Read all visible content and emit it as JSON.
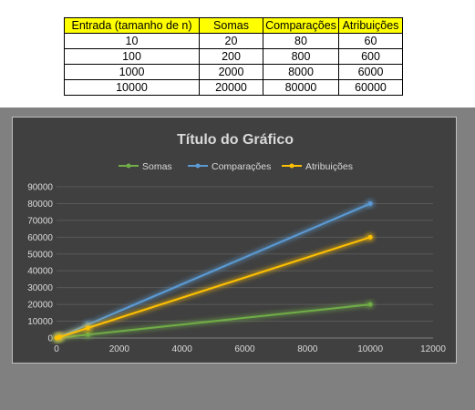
{
  "table": {
    "headers": [
      "Entrada (tamanho de n)",
      "Somas",
      "Comparações",
      "Atribuições"
    ],
    "rows": [
      [
        "10",
        "20",
        "80",
        "60"
      ],
      [
        "100",
        "200",
        "800",
        "600"
      ],
      [
        "1000",
        "2000",
        "8000",
        "6000"
      ],
      [
        "10000",
        "20000",
        "80000",
        "60000"
      ]
    ],
    "header_color": "#ffff00"
  },
  "chart_data": {
    "type": "scatter",
    "title": "Título do Gráfico",
    "xlabel": "",
    "ylabel": "",
    "xlim": [
      0,
      12000
    ],
    "ylim": [
      0,
      90000
    ],
    "x_ticks": [
      0,
      2000,
      4000,
      6000,
      8000,
      10000,
      12000
    ],
    "y_ticks": [
      0,
      10000,
      20000,
      30000,
      40000,
      50000,
      60000,
      70000,
      80000,
      90000
    ],
    "grid": true,
    "legend": "top",
    "x": [
      10,
      100,
      1000,
      10000
    ],
    "series": [
      {
        "name": "Somas",
        "values": [
          20,
          200,
          2000,
          20000
        ],
        "color": "#70ad47"
      },
      {
        "name": "Comparações",
        "values": [
          80,
          800,
          8000,
          80000
        ],
        "color": "#5b9bd5"
      },
      {
        "name": "Atribuições",
        "values": [
          60,
          600,
          6000,
          60000
        ],
        "color": "#ffc000"
      }
    ]
  }
}
